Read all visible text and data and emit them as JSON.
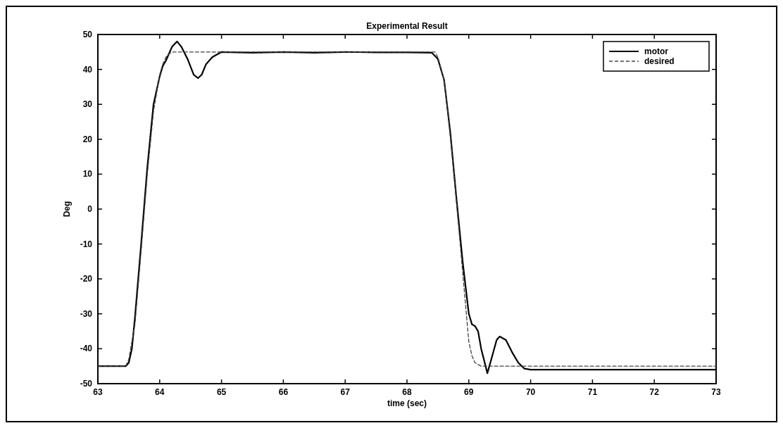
{
  "chart_data": {
    "type": "line",
    "title": "Experimental Result",
    "xlabel": "time (sec)",
    "ylabel": "Deg",
    "xlim": [
      63,
      73
    ],
    "ylim": [
      -50,
      50
    ],
    "xticks": [
      63,
      64,
      65,
      66,
      67,
      68,
      69,
      70,
      71,
      72,
      73
    ],
    "yticks": [
      -50,
      -40,
      -30,
      -20,
      -10,
      0,
      10,
      20,
      30,
      40,
      50
    ],
    "grid": false,
    "legend": "top right",
    "series": [
      {
        "name": "motor",
        "color": "#000000",
        "line_style": "solid",
        "x": [
          63,
          63.4,
          63.45,
          63.5,
          63.55,
          63.6,
          63.7,
          63.8,
          63.9,
          64,
          64.05,
          64.1,
          64.15,
          64.2,
          64.28,
          64.35,
          64.45,
          64.55,
          64.62,
          64.68,
          64.75,
          64.85,
          65,
          65.5,
          66,
          66.5,
          67,
          67.5,
          68,
          68.4,
          68.5,
          68.6,
          68.7,
          68.8,
          68.9,
          69,
          69.05,
          69.1,
          69.15,
          69.2,
          69.3,
          69.38,
          69.45,
          69.5,
          69.6,
          69.7,
          69.8,
          69.9,
          70,
          70.5,
          71,
          72,
          73
        ],
        "values": [
          -45,
          -45,
          -45,
          -44,
          -40,
          -31,
          -10,
          12,
          30,
          38,
          41,
          42.5,
          44.5,
          46.5,
          48,
          46.5,
          43,
          38.5,
          37.5,
          38.5,
          41.5,
          43.5,
          45,
          44.8,
          45,
          44.8,
          45,
          44.9,
          44.9,
          44.8,
          43,
          37,
          22,
          3,
          -15,
          -30,
          -33,
          -33.5,
          -35,
          -40,
          -47,
          -42,
          -37.5,
          -36.5,
          -37.5,
          -41,
          -44,
          -45.7,
          -46,
          -46,
          -46,
          -46,
          -46
        ]
      },
      {
        "name": "desired",
        "color": "#444444",
        "line_style": "dashed",
        "x": [
          63,
          63.4,
          63.45,
          63.5,
          63.6,
          63.7,
          63.8,
          63.9,
          64,
          64.05,
          64.1,
          64.15,
          64.22,
          64.3,
          65,
          66,
          67,
          68,
          68.45,
          68.5,
          68.6,
          68.7,
          68.8,
          68.9,
          69,
          69.05,
          69.1,
          69.2,
          70,
          71,
          72,
          73
        ],
        "values": [
          -45,
          -45,
          -45,
          -43,
          -33,
          -12,
          10,
          28,
          38.5,
          41.5,
          43.5,
          44.5,
          45,
          45,
          45,
          45,
          45,
          45,
          45,
          43.5,
          37,
          21,
          2,
          -18,
          -38,
          -42,
          -44,
          -45,
          -45,
          -45,
          -45,
          -45
        ]
      }
    ]
  }
}
